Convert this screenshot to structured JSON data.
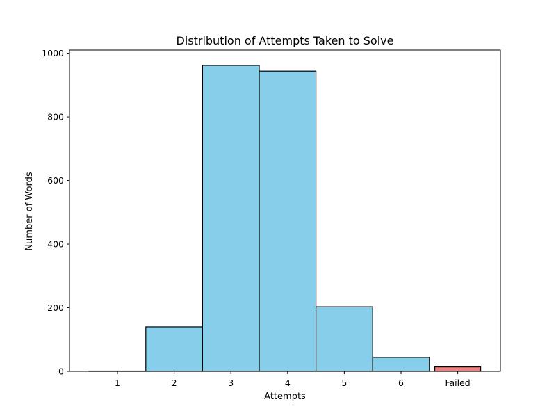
{
  "chart_data": {
    "type": "bar",
    "title": "Distribution of Attempts Taken to Solve",
    "xlabel": "Attempts",
    "ylabel": "Number of Words",
    "categories": [
      "1",
      "2",
      "3",
      "4",
      "5",
      "6",
      "Failed"
    ],
    "values": [
      1,
      140,
      962,
      944,
      203,
      44,
      14
    ],
    "bar_colors": [
      "#87ceeb",
      "#87ceeb",
      "#87ceeb",
      "#87ceeb",
      "#87ceeb",
      "#87ceeb",
      "#f08080"
    ],
    "edge_color": "#000000",
    "ylim": [
      0,
      1010
    ],
    "yticks": [
      0,
      200,
      400,
      600,
      800,
      1000
    ],
    "grid": false,
    "legend": false
  }
}
